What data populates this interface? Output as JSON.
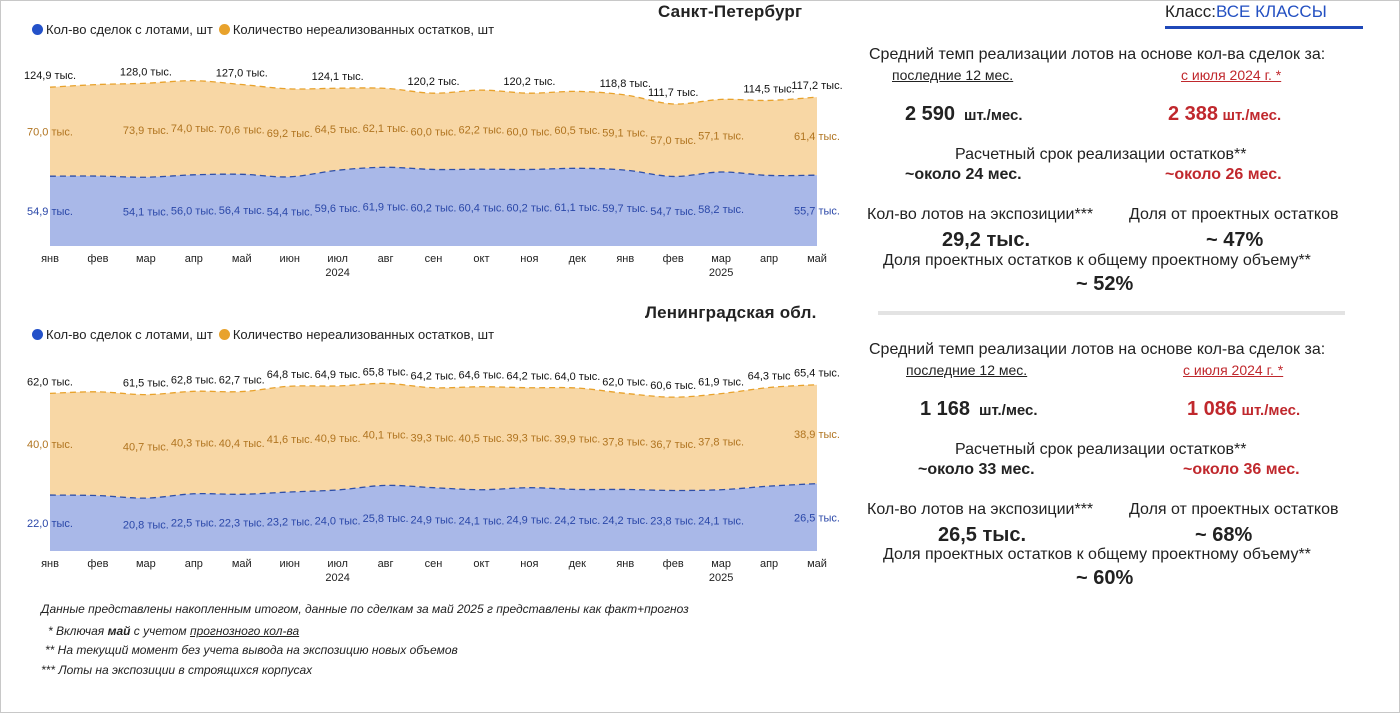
{
  "class_filter": {
    "label": "Класс:",
    "value": "ВСЕ КЛАССЫ"
  },
  "legend": {
    "deals": {
      "label": "Кол-во сделок с лотами, шт",
      "color": "#2351c9"
    },
    "remaining": {
      "label": "Количество нереализованных остатков, шт",
      "color": "#e8a22c"
    }
  },
  "chart_data": [
    {
      "type": "area",
      "title": "Санкт-Петербург",
      "stacked": true,
      "categories": [
        "янв",
        "фев",
        "мар",
        "апр",
        "май",
        "июн",
        "июл",
        "авг",
        "сен",
        "окт",
        "ноя",
        "дек",
        "янв",
        "фев",
        "мар",
        "апр",
        "май"
      ],
      "year_labels": [
        {
          "index": 6,
          "label": "2024"
        },
        {
          "index": 14,
          "label": "2025"
        }
      ],
      "series": [
        {
          "name": "Кол-во сделок с лотами, шт",
          "color": "#a9b8e8",
          "line_color": "#2f4fa8",
          "values": [
            54.9,
            55.0,
            54.1,
            56.0,
            56.4,
            54.4,
            59.6,
            61.9,
            60.2,
            60.4,
            60.2,
            61.1,
            59.7,
            54.7,
            58.2,
            55.5,
            55.7
          ],
          "labels": [
            "54,9 тыс.",
            null,
            "54,1 тыс.",
            "56,0 тыс.",
            "56,4 тыс.",
            "54,4 тыс.",
            "59,6 тыс.",
            "61,9 тыс.",
            "60,2 тыс.",
            "60,4 тыс.",
            "60,2 тыс.",
            "61,1 тыс.",
            "59,7 тыс.",
            "54,7 тыс.",
            "58,2 тыс.",
            null,
            "55,7 тыс."
          ]
        },
        {
          "name": "Количество нереализованных остатков, шт",
          "color": "#f8d7a5",
          "line_color": "#e8a22c",
          "values": [
            70.0,
            72.0,
            73.9,
            74.0,
            70.6,
            69.2,
            64.5,
            62.1,
            60.0,
            62.2,
            60.0,
            60.5,
            59.1,
            57.0,
            57.1,
            59.0,
            61.4
          ],
          "labels": [
            "70,0 тыс.",
            null,
            "73,9 тыс.",
            "74,0 тыс.",
            "70,6 тыс.",
            "69,2 тыс.",
            "64,5 тыс.",
            "62,1 тыс.",
            "60,0 тыс.",
            "62,2 тыс.",
            "60,0 тыс.",
            "60,5 тыс.",
            "59,1 тыс.",
            "57,0 тыс.",
            "57,1 тыс.",
            null,
            "61,4 тыс."
          ]
        }
      ],
      "totals": [
        124.9,
        127.0,
        128.0,
        130.0,
        127.0,
        123.6,
        124.1,
        124.0,
        120.2,
        122.6,
        120.2,
        121.6,
        118.8,
        111.7,
        115.3,
        114.5,
        117.2
      ],
      "total_labels": [
        "124,9 тыс.",
        null,
        "128,0 тыс.",
        null,
        "127,0 тыс.",
        null,
        "124,1 тыс.",
        null,
        "120,2 тыс.",
        null,
        "120,2 тыс.",
        null,
        "118,8 тыс.",
        "111,7 тыс.",
        null,
        "114,5 тыс.",
        "117,2 тыс."
      ],
      "ylim": [
        0,
        140
      ]
    },
    {
      "type": "area",
      "title": "Ленинградская обл.",
      "stacked": true,
      "categories": [
        "янв",
        "фев",
        "мар",
        "апр",
        "май",
        "июн",
        "июл",
        "авг",
        "сен",
        "окт",
        "ноя",
        "дек",
        "янв",
        "фев",
        "мар",
        "апр",
        "май"
      ],
      "year_labels": [
        {
          "index": 6,
          "label": "2024"
        },
        {
          "index": 14,
          "label": "2025"
        }
      ],
      "series": [
        {
          "name": "Кол-во сделок с лотами, шт",
          "color": "#a9b8e8",
          "line_color": "#2f4fa8",
          "values": [
            22.0,
            21.8,
            20.8,
            22.5,
            22.3,
            23.2,
            24.0,
            25.8,
            24.9,
            24.1,
            24.9,
            24.2,
            24.2,
            23.8,
            24.1,
            25.5,
            26.5
          ],
          "labels": [
            "22,0 тыс.",
            null,
            "20,8 тыс.",
            "22,5 тыс.",
            "22,3 тыс.",
            "23,2 тыс.",
            "24,0 тыс.",
            "25,8 тыс.",
            "24,9 тыс.",
            "24,1 тыс.",
            "24,9 тыс.",
            "24,2 тыс.",
            "24,2 тыс.",
            "23,8 тыс.",
            "24,1 тыс.",
            null,
            "26,5 тыс."
          ]
        },
        {
          "name": "Количество нереализованных остатков, шт",
          "color": "#f8d7a5",
          "line_color": "#e8a22c",
          "values": [
            40.0,
            40.8,
            40.7,
            40.3,
            40.4,
            41.6,
            40.9,
            40.1,
            39.3,
            40.5,
            39.3,
            39.9,
            37.8,
            36.7,
            37.8,
            38.8,
            38.9
          ],
          "labels": [
            "40,0 тыс.",
            null,
            "40,7 тыс.",
            "40,3 тыс.",
            "40,4 тыс.",
            "41,6 тыс.",
            "40,9 тыс.",
            "40,1 тыс.",
            "39,3 тыс.",
            "40,5 тыс.",
            "39,3 тыс.",
            "39,9 тыс.",
            "37,8 тыс.",
            "36,7 тыс.",
            "37,8 тыс.",
            null,
            "38,9 тыс."
          ]
        }
      ],
      "totals": [
        62.0,
        62.6,
        61.5,
        62.8,
        62.7,
        64.8,
        64.9,
        65.8,
        64.2,
        64.6,
        64.2,
        64.0,
        62.0,
        60.6,
        61.9,
        64.3,
        65.4
      ],
      "total_labels": [
        "62,0 тыс.",
        null,
        "61,5 тыс.",
        "62,8 тыс.",
        "62,7 тыс.",
        "64,8 тыс.",
        "64,9 тыс.",
        "65,8 тыс.",
        "64,2 тыс.",
        "64,6 тыс.",
        "64,2 тыс.",
        "64,0 тыс.",
        "62,0 тыс.",
        "60,6 тыс.",
        "61,9 тыс.",
        "64,3 тыс",
        "65,4 тыс."
      ],
      "ylim": [
        0,
        70
      ]
    }
  ],
  "stats": [
    {
      "region": "Санкт-Петербург",
      "pace_title": "Средний темп реализации лотов на основе кол-ва сделок за:",
      "period_12": "последние 12 мес.",
      "period_since": "с июля 2024 г. *",
      "pace_12_value": "2 590",
      "pace_since_value": "2 388",
      "unit": "шт./мес.",
      "term_title": "Расчетный срок реализации остатков**",
      "term_12": "~около 24 мес.",
      "term_since": "~около 26 мес.",
      "exposure_title": "Кол-во лотов на экспозиции***",
      "exposure_value": "29,2 тыс.",
      "share_title": "Доля от проектных остатков",
      "share_value": "~ 47%",
      "project_share_title": "Доля проектных остатков к общему проектному объему**",
      "project_share_value": "~ 52%"
    },
    {
      "region": "Ленинградская обл.",
      "pace_title": "Средний темп реализации лотов на основе кол-ва сделок за:",
      "period_12": "последние 12 мес.",
      "period_since": "с июля 2024 г. *",
      "pace_12_value": "1 168",
      "pace_since_value": "1 086",
      "unit": "шт./мес.",
      "term_title": "Расчетный срок реализации остатков**",
      "term_12": "~около 33 мес.",
      "term_since": "~около 36 мес.",
      "exposure_title": "Кол-во лотов на экспозиции***",
      "exposure_value": "26,5 тыс.",
      "share_title": "Доля от проектных остатков",
      "share_value": "~ 68%",
      "project_share_title": "Доля проектных остатков к общему проектному объему**",
      "project_share_value": "~ 60%"
    }
  ],
  "footnotes": {
    "main": "Данные представлены накопленным итогом, данные по сделкам за май 2025 г представлены как факт+прогноз",
    "note1_prefix": "* Включая ",
    "note1_bold": "май",
    "note1_mid": " с учетом ",
    "note1_underline": "прогнозного кол-ва",
    "note2": "** На текущий момент без учета вывода на экспозицию новых объемов",
    "note3": "*** Лоты на экспозиции  в строящихся корпусах"
  }
}
